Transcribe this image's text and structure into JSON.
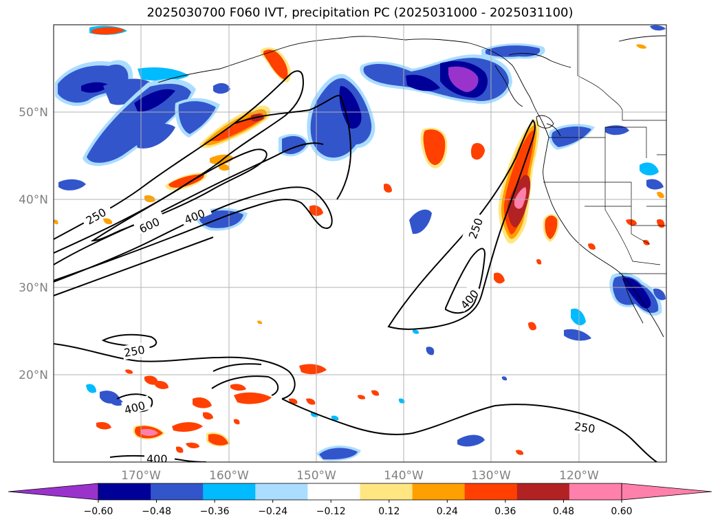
{
  "title": "2025030700 F060 IVT, precipitation PC (2025031000 - 2025031100)",
  "lat_labels": [
    "50°N",
    "40°N",
    "30°N",
    "20°N"
  ],
  "lon_labels": [
    "170°W",
    "160°W",
    "150°W",
    "140°W",
    "130°W",
    "120°W"
  ],
  "contour_labels": [
    "250",
    "600",
    "400",
    "250",
    "400",
    "250",
    "400",
    "250",
    "400"
  ],
  "colorbar": {
    "ticks": [
      "−0.60",
      "−0.48",
      "−0.36",
      "−0.24",
      "−0.12",
      "0.12",
      "0.24",
      "0.36",
      "0.48",
      "0.60"
    ],
    "colors": [
      "#9933cc",
      "#000099",
      "#3355cc",
      "#00bbff",
      "#aaddff",
      "#ffffff",
      "#ffe680",
      "#ffa000",
      "#ff4000",
      "#b22222",
      "#ff80aa",
      "#ff80aa"
    ]
  },
  "palette": {
    "neg_low": "#aaddff",
    "neg_mid": "#00bbff",
    "neg_high": "#3355cc",
    "neg_vhigh": "#000099",
    "neg_ext": "#9933cc",
    "pos_low": "#ffe680",
    "pos_mid": "#ffa000",
    "pos_high": "#ff4000",
    "pos_vhigh": "#b22222",
    "pos_ext": "#ff80aa"
  }
}
